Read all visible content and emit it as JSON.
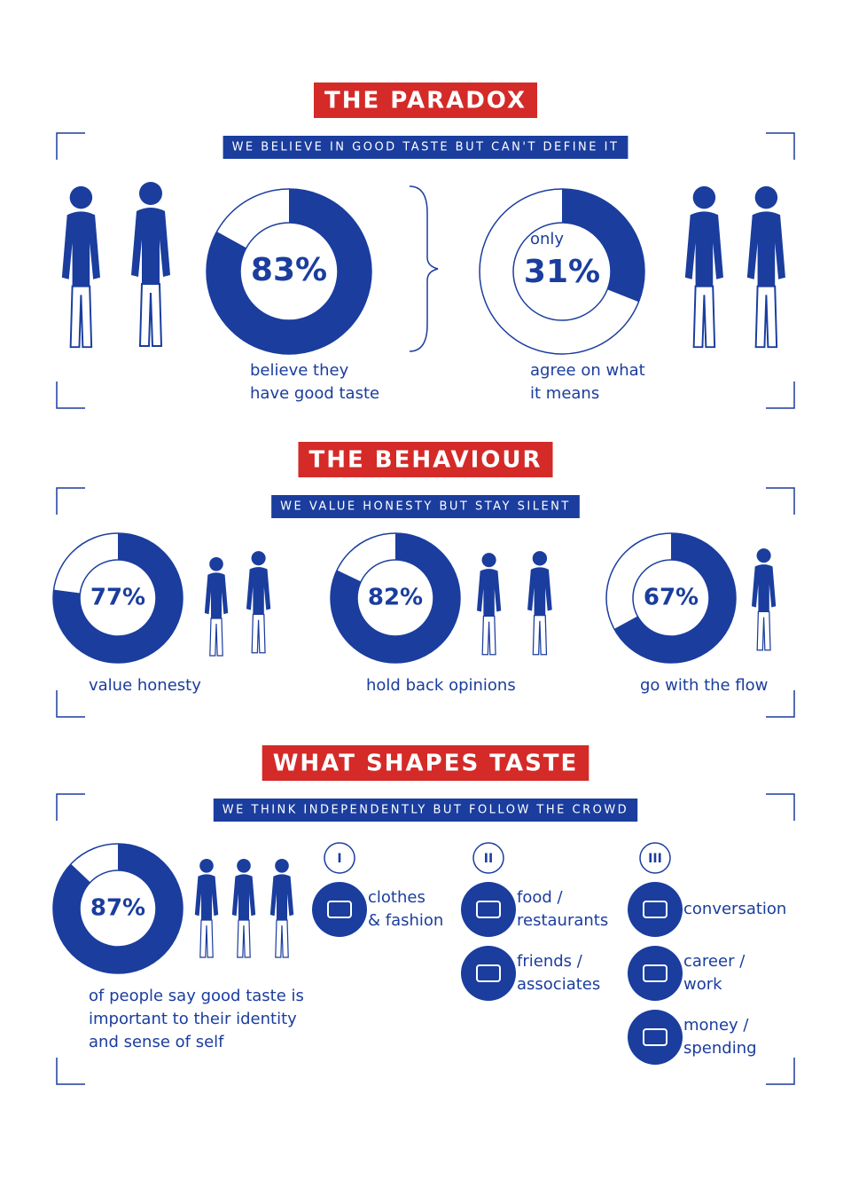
{
  "sections": [
    {
      "title": "THE PARADOX",
      "subtitle": "WE BELIEVE IN GOOD TASTE BUT CAN'T DEFINE IT",
      "stats": [
        {
          "value": 83,
          "value_label": "83%",
          "caption": [
            "believe they",
            "have good taste"
          ]
        },
        {
          "prefix": "only",
          "value": 31,
          "value_label": "31%",
          "caption": [
            "agree on what",
            "it means"
          ]
        }
      ]
    },
    {
      "title": "THE BEHAVIOUR",
      "subtitle": "WE VALUE HONESTY BUT STAY SILENT",
      "stats": [
        {
          "value": 77,
          "value_label": "77%",
          "caption": [
            "value honesty"
          ]
        },
        {
          "value": 82,
          "value_label": "82%",
          "caption": [
            "hold back opinions"
          ]
        },
        {
          "value": 67,
          "value_label": "67%",
          "caption": [
            "go with the flow"
          ]
        }
      ]
    },
    {
      "title": "WHAT SHAPES TASTE",
      "subtitle": "WE THINK INDEPENDENTLY BUT FOLLOW THE CROWD",
      "stats": [
        {
          "value": 87,
          "value_label": "87%",
          "caption": [
            "of people say good taste is",
            "important to their identity",
            "and sense of self"
          ]
        }
      ],
      "groups": [
        {
          "numeral": "I",
          "items": [
            [
              "clothes",
              "& fashion"
            ]
          ]
        },
        {
          "numeral": "II",
          "items": [
            [
              "food /",
              "restaurants"
            ],
            [
              "friends /",
              "associates"
            ]
          ]
        },
        {
          "numeral": "III",
          "items": [
            [
              "conversation"
            ],
            [
              "career /",
              "work"
            ],
            [
              "money /",
              "spending"
            ]
          ]
        }
      ]
    }
  ]
}
